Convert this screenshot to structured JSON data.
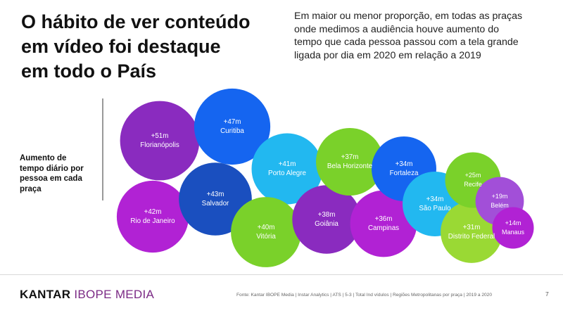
{
  "title_lines": [
    "O hábito de ver conteúdo",
    "em vídeo foi destaque",
    "em todo o País"
  ],
  "subtitle_lines": [
    "Em maior ou menor proporção, em todas as praças",
    "onde medimos a audiência houve aumento do",
    "tempo que cada pessoa passou com a tela grande",
    "ligada por dia em 2020 em relação a 2019"
  ],
  "side_label_lines": [
    "Aumento de",
    "tempo diário por",
    "pessoa em cada",
    "praça"
  ],
  "footer": {
    "logo_brand": "KANTAR",
    "logo_sub": "IBOPE MEDIA",
    "source": "Fonte: Kantar IBOPE Media | Instar Analytics | ATS | 5-3 | Total Ind vídulos | Regiões Metropolitanas por praça | 2019 a 2020",
    "page_number": "7"
  },
  "colors": {
    "purple": "#8a2bbf",
    "blue": "#1565f0",
    "navy": "#1a4fbf",
    "magenta": "#b122d4",
    "cyan": "#22b8f0",
    "green": "#7ad12a",
    "light_green": "#9ad934",
    "light_purple": "#a24fd8"
  },
  "chart_data": {
    "type": "bubble",
    "unit": "m",
    "points": [
      {
        "label": "Florianópolis",
        "value": 51,
        "text": "+51m",
        "color": "#8a2bbf"
      },
      {
        "label": "Curitiba",
        "value": 47,
        "text": "+47m",
        "color": "#1565f0"
      },
      {
        "label": "Rio de Janeiro",
        "value": 42,
        "text": "+42m",
        "color": "#b122d4"
      },
      {
        "label": "Salvador",
        "value": 43,
        "text": "+43m",
        "color": "#1a4fbf"
      },
      {
        "label": "Porto Alegre",
        "value": 41,
        "text": "+41m",
        "color": "#22b8f0"
      },
      {
        "label": "Vitória",
        "value": 40,
        "text": "+40m",
        "color": "#7ad12a"
      },
      {
        "label": "Goiânia",
        "value": 38,
        "text": "+38m",
        "color": "#8a2bbf"
      },
      {
        "label": "Bela Horizonte",
        "value": 37,
        "text": "+37m",
        "color": "#7ad12a"
      },
      {
        "label": "Campinas",
        "value": 36,
        "text": "+36m",
        "color": "#b122d4"
      },
      {
        "label": "Fortaleza",
        "value": 34,
        "text": "+34m",
        "color": "#1565f0"
      },
      {
        "label": "São Paulo",
        "value": 34,
        "text": "+34m",
        "color": "#22b8f0"
      },
      {
        "label": "Distrito Federal",
        "value": 31,
        "text": "+31m",
        "color": "#9ad934"
      },
      {
        "label": "Recife",
        "value": 25,
        "text": "+25m",
        "color": "#7ad12a"
      },
      {
        "label": "Belém",
        "value": 19,
        "text": "+19m",
        "color": "#a24fd8"
      },
      {
        "label": "Manaus",
        "value": 14,
        "text": "+14m",
        "color": "#b122d4"
      }
    ]
  }
}
